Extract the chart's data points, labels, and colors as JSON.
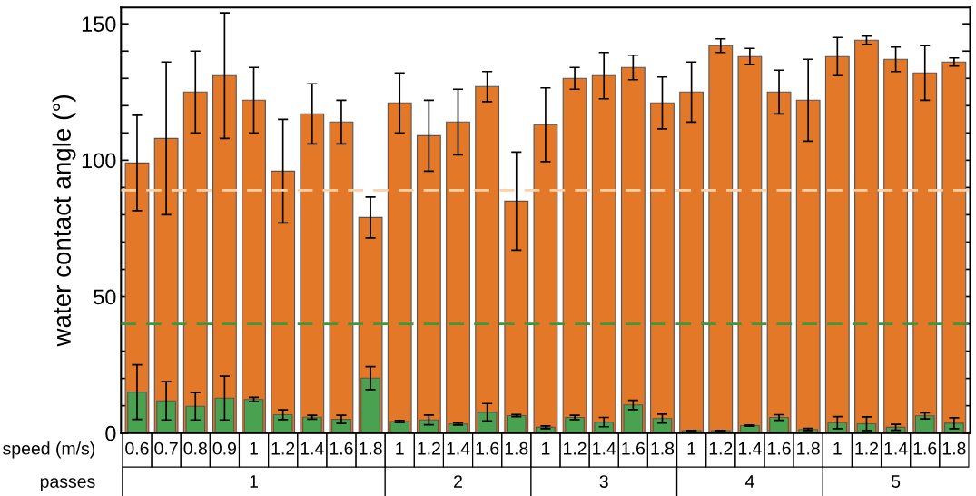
{
  "chart_data": {
    "type": "bar",
    "ylabel": "water contact angle (°)",
    "xlabel": "speed (m/s)",
    "categories": [
      "0.6",
      "0.7",
      "0.8",
      "0.9",
      "1",
      "1.2",
      "1.4",
      "1.6",
      "1.8",
      "1",
      "1.2",
      "1.4",
      "1.6",
      "1.8",
      "1",
      "1.2",
      "1.4",
      "1.6",
      "1.8",
      "1",
      "1.2",
      "1.4",
      "1.6",
      "1.8",
      "1",
      "1.2",
      "1.4",
      "1.6",
      "1.8"
    ],
    "series": [
      {
        "color": "#e37829",
        "values": [
          99,
          108,
          125,
          131,
          122,
          96,
          117,
          114,
          79,
          121,
          109,
          114,
          127,
          85,
          113,
          130,
          131,
          134,
          121,
          125,
          142,
          138,
          125,
          122,
          138,
          144,
          137,
          132,
          136
        ],
        "errors": [
          17.5,
          28,
          15,
          23,
          12,
          19,
          11,
          8,
          7.5,
          11,
          13,
          12,
          5.5,
          18,
          13.5,
          4,
          8.5,
          4.5,
          9.5,
          11,
          2.5,
          3,
          8,
          15,
          7,
          1.5,
          4.5,
          10,
          1.5
        ]
      },
      {
        "color": "#4aa14f",
        "values": [
          15,
          11.8,
          9.8,
          12.8,
          12.3,
          6.7,
          5.8,
          5,
          20.1,
          4.2,
          4.8,
          3.3,
          7.6,
          6.4,
          2.1,
          5.7,
          4,
          10.3,
          5.3,
          0.9,
          0.9,
          2.7,
          5.7,
          1.3,
          3.8,
          3.4,
          2.1,
          6.3,
          3.6
        ],
        "errors": [
          10,
          7,
          5,
          8,
          0.8,
          1.8,
          0.7,
          1.5,
          4.2,
          0.4,
          1.8,
          0.4,
          3.2,
          0.4,
          0.5,
          0.8,
          1.7,
          1.7,
          1.6,
          null,
          null,
          0.2,
          1,
          0.4,
          2.2,
          2.5,
          1.1,
          1.1,
          2
        ]
      }
    ],
    "ylim": [
      0,
      156
    ],
    "yticks": [
      0,
      {
        "value": 10,
        "label": null
      },
      {
        "value": 20,
        "label": null
      },
      {
        "value": 30,
        "label": null
      },
      {
        "value": 40,
        "label": null
      },
      50,
      {
        "value": 60,
        "label": null
      },
      {
        "value": 70,
        "label": null
      },
      {
        "value": 80,
        "label": null
      },
      {
        "value": 90,
        "label": null
      },
      100,
      {
        "value": 110,
        "label": null
      },
      {
        "value": 120,
        "label": null
      },
      {
        "value": 130,
        "label": null
      },
      {
        "value": 140,
        "label": null
      },
      150
    ],
    "ref_lines": [
      {
        "axis": "y",
        "value": 89,
        "color": "#fdd0a8",
        "line_style": "dashed"
      },
      {
        "axis": "y",
        "value": 40,
        "color": "#3a9a3a",
        "line_style": "dashed"
      }
    ],
    "annotations": [
      "passes",
      "1",
      "2",
      "3",
      "4",
      "5"
    ],
    "grid": false,
    "legend": false
  }
}
